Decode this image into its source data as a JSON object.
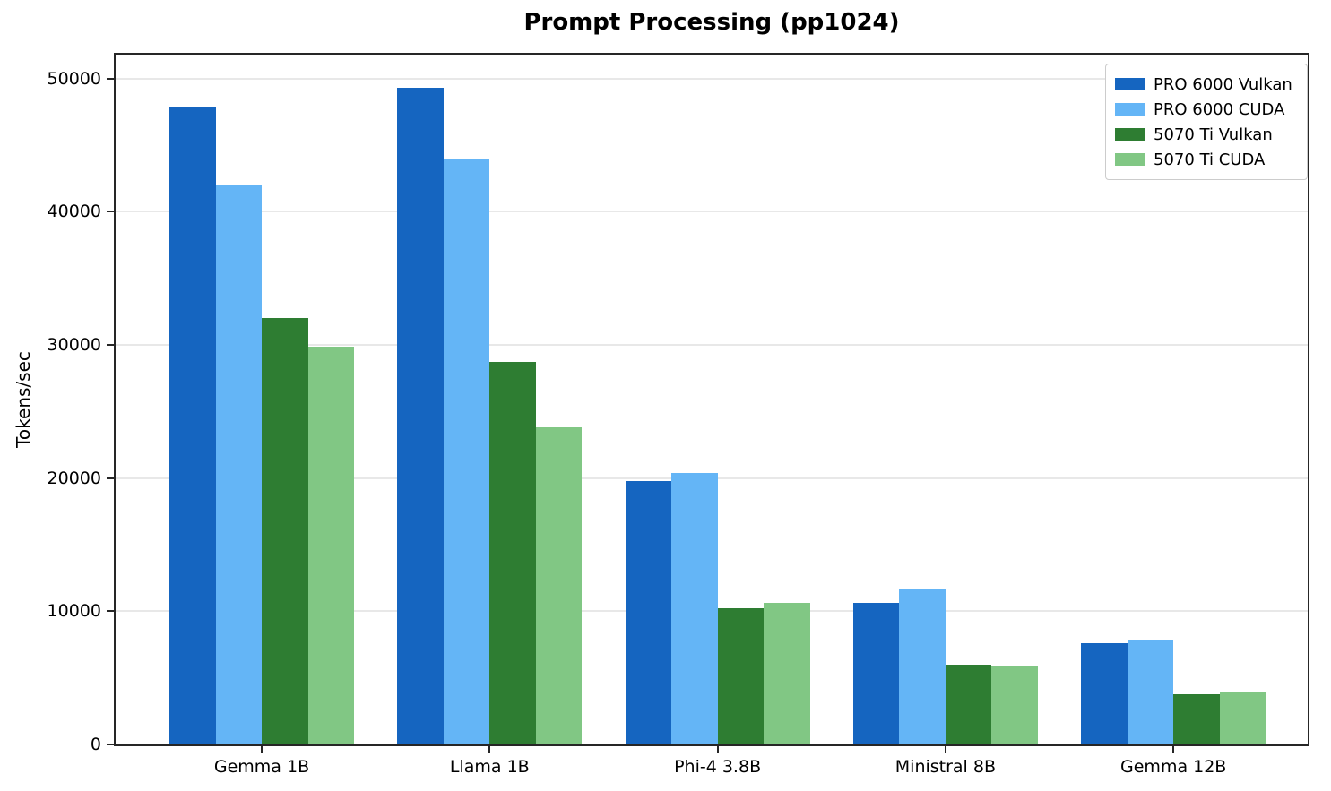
{
  "chart_data": {
    "type": "bar",
    "title": "Prompt Processing (pp1024)",
    "ylabel": "Tokens/sec",
    "xlabel": "",
    "categories": [
      "Gemma 1B",
      "Llama 1B",
      "Phi-4 3.8B",
      "Ministral 8B",
      "Gemma 12B"
    ],
    "series": [
      {
        "name": "PRO 6000 Vulkan",
        "color": "#1565C0",
        "values": [
          47900,
          49300,
          19800,
          10600,
          7600
        ]
      },
      {
        "name": "PRO 6000 CUDA",
        "color": "#64B5F6",
        "values": [
          42000,
          44000,
          20400,
          11700,
          7900
        ]
      },
      {
        "name": "5070 Ti Vulkan",
        "color": "#2E7D32",
        "values": [
          32000,
          28700,
          10200,
          6000,
          3800
        ]
      },
      {
        "name": "5070 Ti CUDA",
        "color": "#81C784",
        "values": [
          29900,
          23800,
          10600,
          5900,
          4000
        ]
      }
    ],
    "ylim": [
      0,
      51800
    ],
    "yticks": [
      0,
      10000,
      20000,
      30000,
      40000,
      50000
    ],
    "grid": "horizontal-only",
    "gridline_color": "#e8e8e8",
    "spine_color": "#262626",
    "legend_position": "upper-right"
  }
}
